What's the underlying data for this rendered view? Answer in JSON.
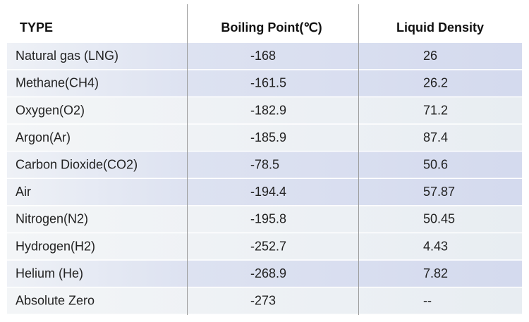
{
  "table": {
    "header": [
      "TYPE",
      "Boiling Point(℃)",
      "Liquid Density"
    ],
    "rows": [
      [
        "Natural gas (LNG)",
        "-168",
        "26"
      ],
      [
        "Methane(CH4)",
        "-161.5",
        "26.2"
      ],
      [
        "Oxygen(O2)",
        "-182.9",
        "71.2"
      ],
      [
        "Argon(Ar)",
        "-185.9",
        "87.4"
      ],
      [
        "Carbon Dioxide(CO2)",
        "-78.5",
        "50.6"
      ],
      [
        "Air",
        "-194.4",
        "57.87"
      ],
      [
        "Nitrogen(N2)",
        "-195.8",
        "50.45"
      ],
      [
        "Hydrogen(H2)",
        "-252.7",
        "4.43"
      ],
      [
        "Helium (He)",
        "-268.9",
        "7.82"
      ],
      [
        "Absolute Zero",
        "-273",
        "--"
      ]
    ]
  }
}
